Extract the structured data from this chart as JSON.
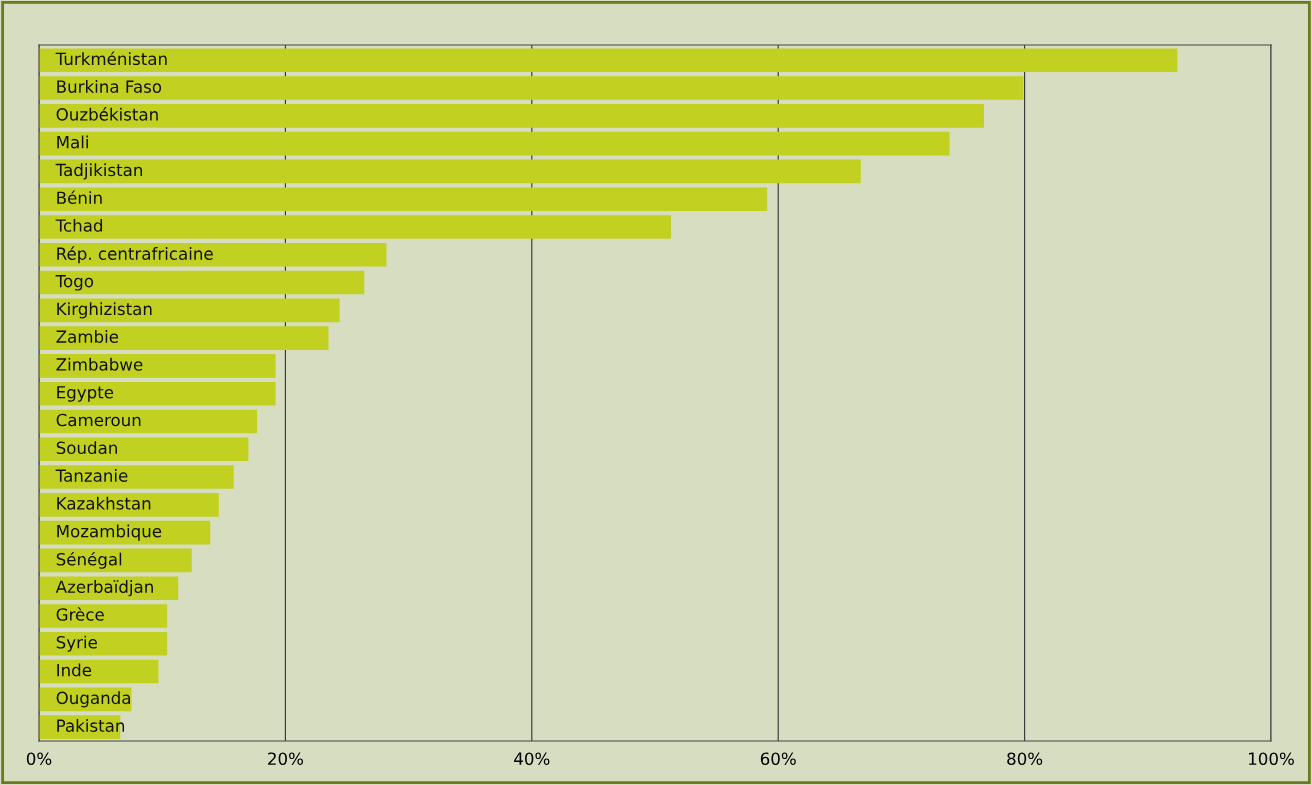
{
  "chart_data": {
    "type": "bar",
    "orientation": "horizontal",
    "categories": [
      "Turkménistan",
      "Burkina Faso",
      "Ouzbékistan",
      "Mali",
      "Tadjikistan",
      "Bénin",
      "Tchad",
      "Rép. centrafricaine",
      "Togo",
      "Kirghizistan",
      "Zambie",
      "Zimbabwe",
      "Egypte",
      "Cameroun",
      "Soudan",
      "Tanzanie",
      "Kazakhstan",
      "Mozambique",
      "Sénégal",
      "Azerbaïdjan",
      "Grèce",
      "Syrie",
      "Inde",
      "Ouganda",
      "Pakistan"
    ],
    "values": [
      92.4,
      79.9,
      76.7,
      73.9,
      66.7,
      59.1,
      51.3,
      28.2,
      26.4,
      24.4,
      23.5,
      19.2,
      19.2,
      17.7,
      17.0,
      15.8,
      14.6,
      13.9,
      12.4,
      11.3,
      10.4,
      10.4,
      9.7,
      7.5,
      6.6
    ],
    "color": "#c2d121",
    "xlim": [
      0,
      100
    ],
    "xticks": [
      {
        "value": 0,
        "label": "0%"
      },
      {
        "value": 20,
        "label": "20%"
      },
      {
        "value": 40,
        "label": "40%"
      },
      {
        "value": 60,
        "label": "60%"
      },
      {
        "value": 80,
        "label": "80%"
      },
      {
        "value": 100,
        "label": "100%"
      }
    ],
    "grid": "x",
    "legend": false
  }
}
